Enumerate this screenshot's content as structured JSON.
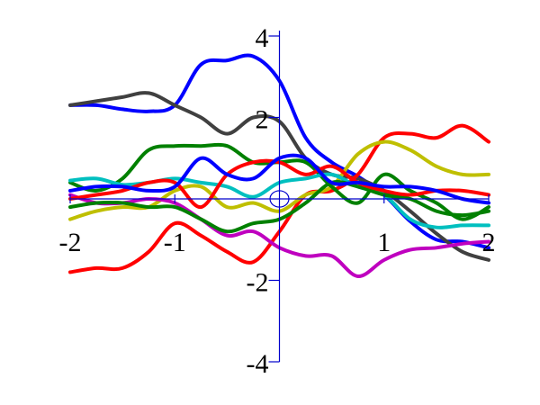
{
  "chart_data": {
    "type": "line",
    "title": "",
    "xlabel": "",
    "ylabel": "",
    "xlim": [
      -2,
      2
    ],
    "ylim": [
      -4,
      4
    ],
    "grid": false,
    "legend": "none",
    "axis_color": "#0000cc",
    "x_ticks": [
      {
        "value": -2,
        "label": "-2"
      },
      {
        "value": -1,
        "label": "-1"
      },
      {
        "value": 1,
        "label": "1"
      },
      {
        "value": 2,
        "label": "2"
      }
    ],
    "y_ticks": [
      {
        "value": 4,
        "label": "4"
      },
      {
        "value": 2,
        "label": "2"
      },
      {
        "value": -2,
        "label": "-2"
      },
      {
        "value": -4,
        "label": "-4"
      }
    ],
    "origin_marker": {
      "x": 0,
      "y": 0,
      "rx": 0.09,
      "ry": 0.2
    },
    "x": [
      -2,
      -1.75,
      -1.5,
      -1.25,
      -1,
      -0.75,
      -0.5,
      -0.25,
      0,
      0.25,
      0.5,
      0.75,
      1,
      1.25,
      1.5,
      1.75,
      2
    ],
    "series": [
      {
        "name": "blue",
        "color": "#0000ff",
        "values": [
          2.3,
          2.3,
          2.2,
          2.15,
          2.3,
          3.3,
          3.4,
          3.5,
          2.9,
          1.5,
          0.9,
          0.55,
          0.1,
          -0.55,
          -1.0,
          -1.05,
          -1.2
        ]
      },
      {
        "name": "dark gray",
        "color": "#404040",
        "values": [
          2.3,
          2.4,
          2.5,
          2.6,
          2.3,
          2.0,
          1.6,
          2.0,
          1.9,
          1.0,
          0.6,
          0.5,
          0.2,
          -0.3,
          -0.85,
          -1.3,
          -1.5
        ]
      },
      {
        "name": "red",
        "color": "#ff0000",
        "values": [
          -1.8,
          -1.7,
          -1.7,
          -1.3,
          -0.6,
          -0.9,
          -1.3,
          -1.55,
          -0.8,
          0.1,
          0.2,
          0.6,
          1.5,
          1.6,
          1.5,
          1.8,
          1.4
        ]
      },
      {
        "name": "yellow green",
        "color": "#bfbf00",
        "values": [
          -0.5,
          -0.3,
          -0.2,
          -0.2,
          0.2,
          0.3,
          -0.2,
          -0.1,
          -0.3,
          0.1,
          0.3,
          1.1,
          1.4,
          1.2,
          0.8,
          0.6,
          0.6
        ]
      },
      {
        "name": "green",
        "color": "#008000",
        "values": [
          0.4,
          0.2,
          0.5,
          1.2,
          1.3,
          1.3,
          1.3,
          0.9,
          0.9,
          0.9,
          0.3,
          -0.1,
          0.6,
          0.2,
          -0.1,
          -0.5,
          -0.2
        ]
      },
      {
        "name": "magenta",
        "color": "#bf00bf",
        "values": [
          0.1,
          -0.1,
          -0.1,
          0.0,
          -0.1,
          -0.5,
          -0.9,
          -0.8,
          -1.2,
          -1.4,
          -1.4,
          -1.9,
          -1.5,
          -1.25,
          -1.2,
          -1.1,
          -1.05
        ]
      },
      {
        "name": "cyan",
        "color": "#00bfbf",
        "values": [
          0.45,
          0.5,
          0.35,
          0.4,
          0.5,
          0.4,
          0.3,
          0.05,
          0.4,
          0.5,
          0.6,
          0.3,
          0.1,
          -0.5,
          -0.7,
          -0.65,
          -0.65
        ]
      },
      {
        "name": "dark green",
        "color": "#008000",
        "values": [
          -0.2,
          -0.1,
          -0.1,
          -0.2,
          -0.2,
          -0.5,
          -0.8,
          -0.6,
          -0.5,
          -0.1,
          0.4,
          0.3,
          0.1,
          0.0,
          -0.3,
          -0.4,
          -0.3
        ]
      },
      {
        "name": "red 2",
        "color": "#ff0000",
        "values": [
          0.0,
          0.1,
          0.2,
          0.4,
          0.4,
          -0.2,
          0.6,
          0.9,
          0.9,
          0.6,
          0.8,
          0.4,
          0.2,
          0.1,
          0.2,
          0.2,
          0.1
        ]
      },
      {
        "name": "blue 2",
        "color": "#0000ff",
        "values": [
          0.2,
          0.3,
          0.3,
          0.2,
          0.3,
          1.0,
          0.6,
          0.5,
          1.0,
          1.0,
          0.4,
          0.4,
          0.3,
          0.3,
          0.2,
          0.0,
          -0.1
        ]
      }
    ]
  }
}
